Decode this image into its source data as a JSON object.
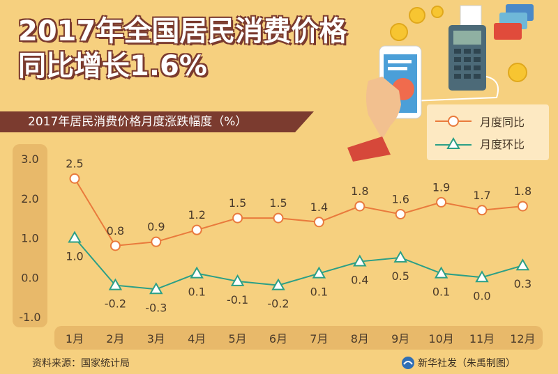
{
  "title_line1": "2017年全国居民消费价格",
  "title_line2": "同比增长1.6%",
  "subtitle": "2017年居民消费价格月度涨跌幅度（%）",
  "footer_source": "资料来源：国家统计局",
  "footer_credit": "新华社发（朱禹制图）",
  "colors": {
    "yoy": "#e97a3c",
    "mom": "#2b9f86",
    "banner": "#7b3b2f",
    "background": "#f6d07f"
  },
  "chart_data": {
    "type": "line",
    "title": "2017年居民消费价格月度涨跌幅度（%）",
    "categories": [
      "1月",
      "2月",
      "3月",
      "4月",
      "5月",
      "6月",
      "7月",
      "8月",
      "9月",
      "10月",
      "11月",
      "12月"
    ],
    "series": [
      {
        "name": "月度同比",
        "marker": "circle",
        "values": [
          2.5,
          0.8,
          0.9,
          1.2,
          1.5,
          1.5,
          1.4,
          1.8,
          1.6,
          1.9,
          1.7,
          1.8
        ],
        "labels": [
          "2.5",
          "0.8",
          "0.9",
          "1.2",
          "1.5",
          "1.5",
          "1.4",
          "1.8",
          "1.6",
          "1.9",
          "1.7",
          "1.8"
        ]
      },
      {
        "name": "月度环比",
        "marker": "triangle",
        "values": [
          1.0,
          -0.2,
          -0.3,
          0.1,
          -0.1,
          -0.2,
          0.1,
          0.4,
          0.5,
          0.1,
          0.0,
          0.3
        ],
        "labels": [
          "1.0",
          "-0.2",
          "-0.3",
          "0.1",
          "-0.1",
          "-0.2",
          "0.1",
          "0.4",
          "0.5",
          "0.1",
          "0.0",
          "0.3"
        ]
      }
    ],
    "yticks": [
      "3.0",
      "2.0",
      "1.0",
      "0.0",
      "-1.0"
    ],
    "ylim": [
      -1.0,
      3.0
    ],
    "grid": false,
    "legend": "top-right"
  }
}
